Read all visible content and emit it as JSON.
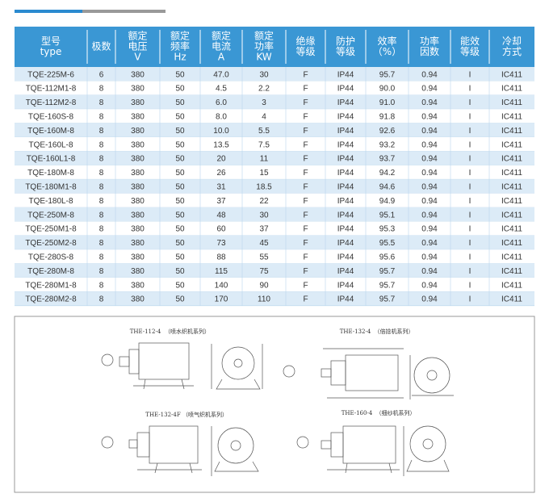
{
  "table": {
    "header": [
      [
        "型号",
        "type"
      ],
      [
        "极数"
      ],
      [
        "额定",
        "电压",
        "V"
      ],
      [
        "额定",
        "频率",
        "Hz"
      ],
      [
        "额定",
        "电流",
        "A"
      ],
      [
        "额定",
        "功率",
        "KW"
      ],
      [
        "绝缘",
        "等级"
      ],
      [
        "防护",
        "等级"
      ],
      [
        "效率",
        "（%）"
      ],
      [
        "功率",
        "因数"
      ],
      [
        "能效",
        "等级"
      ],
      [
        "冷却",
        "方式"
      ]
    ],
    "rows": [
      [
        "TQE-225M-6",
        "6",
        "380",
        "50",
        "47.0",
        "30",
        "F",
        "IP44",
        "95.7",
        "0.94",
        "I",
        "IC411"
      ],
      [
        "TQE-112M1-8",
        "8",
        "380",
        "50",
        "4.5",
        "2.2",
        "F",
        "IP44",
        "90.0",
        "0.94",
        "I",
        "IC411"
      ],
      [
        "TQE-112M2-8",
        "8",
        "380",
        "50",
        "6.0",
        "3",
        "F",
        "IP44",
        "91.0",
        "0.94",
        "I",
        "IC411"
      ],
      [
        "TQE-160S-8",
        "8",
        "380",
        "50",
        "8.0",
        "4",
        "F",
        "IP44",
        "91.8",
        "0.94",
        "I",
        "IC411"
      ],
      [
        "TQE-160M-8",
        "8",
        "380",
        "50",
        "10.0",
        "5.5",
        "F",
        "IP44",
        "92.6",
        "0.94",
        "I",
        "IC411"
      ],
      [
        "TQE-160L-8",
        "8",
        "380",
        "50",
        "13.5",
        "7.5",
        "F",
        "IP44",
        "93.2",
        "0.94",
        "I",
        "IC411"
      ],
      [
        "TQE-160L1-8",
        "8",
        "380",
        "50",
        "20",
        "11",
        "F",
        "IP44",
        "93.7",
        "0.94",
        "I",
        "IC411"
      ],
      [
        "TQE-180M-8",
        "8",
        "380",
        "50",
        "26",
        "15",
        "F",
        "IP44",
        "94.2",
        "0.94",
        "I",
        "IC411"
      ],
      [
        "TQE-180M1-8",
        "8",
        "380",
        "50",
        "31",
        "18.5",
        "F",
        "IP44",
        "94.6",
        "0.94",
        "I",
        "IC411"
      ],
      [
        "TQE-180L-8",
        "8",
        "380",
        "50",
        "37",
        "22",
        "F",
        "IP44",
        "94.9",
        "0.94",
        "I",
        "IC411"
      ],
      [
        "TQE-250M-8",
        "8",
        "380",
        "50",
        "48",
        "30",
        "F",
        "IP44",
        "95.1",
        "0.94",
        "I",
        "IC411"
      ],
      [
        "TQE-250M1-8",
        "8",
        "380",
        "50",
        "60",
        "37",
        "F",
        "IP44",
        "95.3",
        "0.94",
        "I",
        "IC411"
      ],
      [
        "TQE-250M2-8",
        "8",
        "380",
        "50",
        "73",
        "45",
        "F",
        "IP44",
        "95.5",
        "0.94",
        "I",
        "IC411"
      ],
      [
        "TQE-280S-8",
        "8",
        "380",
        "50",
        "88",
        "55",
        "F",
        "IP44",
        "95.6",
        "0.94",
        "I",
        "IC411"
      ],
      [
        "TQE-280M-8",
        "8",
        "380",
        "50",
        "115",
        "75",
        "F",
        "IP44",
        "95.7",
        "0.94",
        "I",
        "IC411"
      ],
      [
        "TQE-280M1-8",
        "8",
        "380",
        "50",
        "140",
        "90",
        "F",
        "IP44",
        "95.7",
        "0.94",
        "I",
        "IC411"
      ],
      [
        "TQE-280M2-8",
        "8",
        "380",
        "50",
        "170",
        "110",
        "F",
        "IP44",
        "95.7",
        "0.94",
        "I",
        "IC411"
      ]
    ]
  },
  "drawings": [
    {
      "model": "THE-112-4",
      "caption": "（喷水织机系列）"
    },
    {
      "model": "THE-132-4",
      "caption": "（倍捻机系列）"
    },
    {
      "model": "THE-132-4F",
      "caption": "（喷气织机系列）"
    },
    {
      "model": "THE-160-4",
      "caption": "（细纱机系列）"
    }
  ]
}
